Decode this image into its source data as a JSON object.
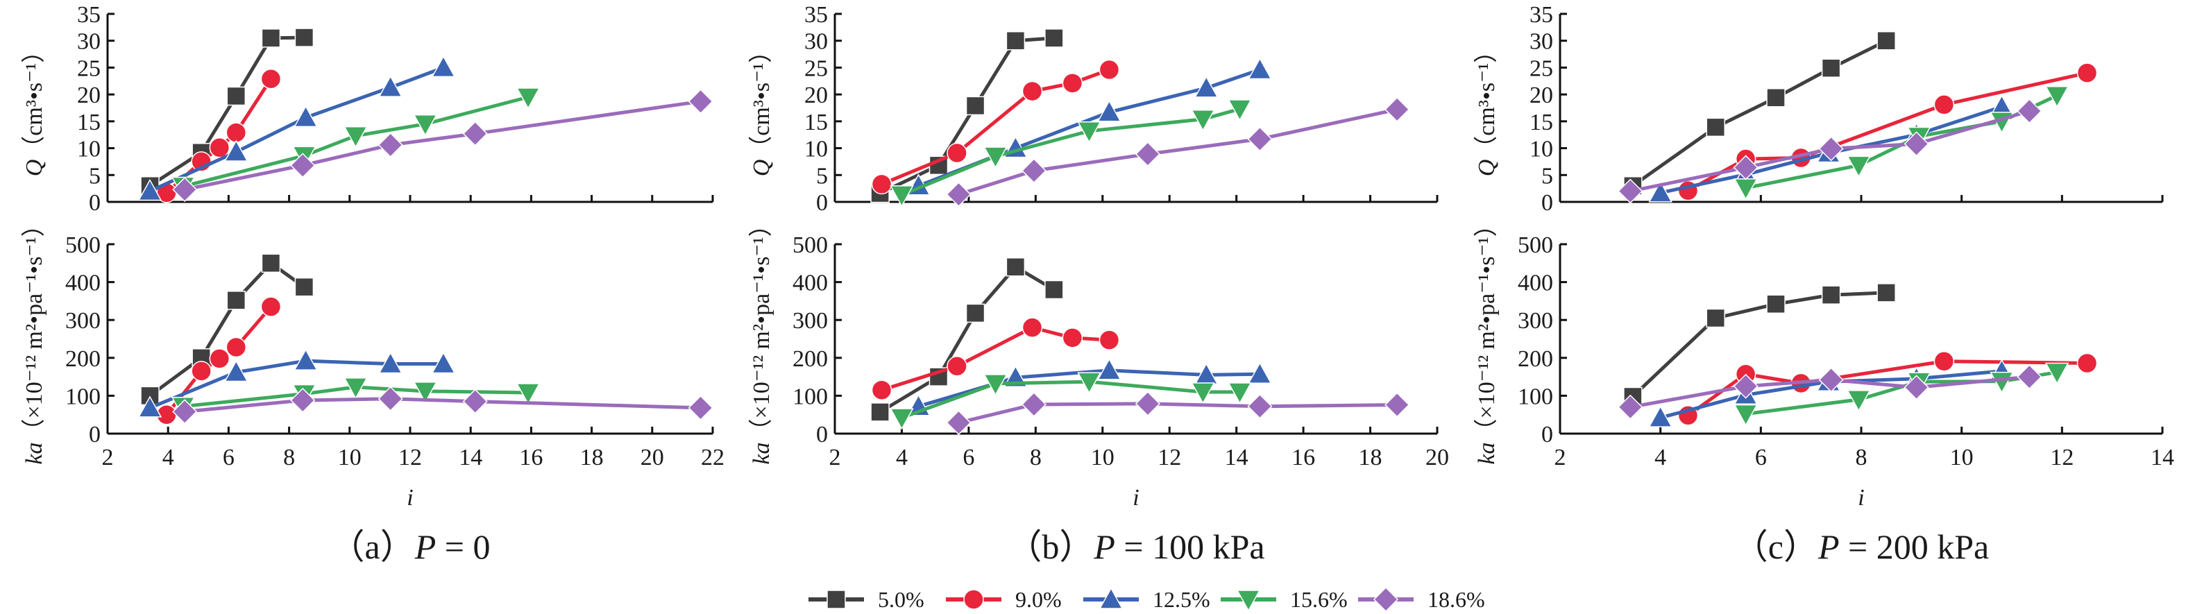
{
  "chart_data": {
    "type": "line",
    "legend": {
      "placement": "bottom-center",
      "entries": [
        "5.0%",
        "9.0%",
        "12.5%",
        "15.6%",
        "18.6%"
      ]
    },
    "series_styles": [
      {
        "name": "5.0%",
        "color": "#404040",
        "marker": "square"
      },
      {
        "name": "9.0%",
        "color": "#e8253a",
        "marker": "circle"
      },
      {
        "name": "12.5%",
        "color": "#3b64b3",
        "marker": "triangle-up"
      },
      {
        "name": "15.6%",
        "color": "#3daa5c",
        "marker": "triangle-down"
      },
      {
        "name": "18.6%",
        "color": "#9b6bbb",
        "marker": "diamond"
      }
    ],
    "panels": [
      {
        "caption_prefix": "（a）",
        "caption_var": "P",
        "caption_value": " = 0",
        "xlabel": "i",
        "xlim": [
          2,
          22
        ],
        "xticks": [
          2,
          4,
          6,
          8,
          10,
          12,
          14,
          16,
          18,
          20,
          22
        ],
        "top": {
          "ylabel_var": "Q",
          "ylabel_unit": "（cm³•s⁻¹）",
          "ylim": [
            0,
            35
          ],
          "yticks": [
            0,
            5,
            10,
            15,
            20,
            25,
            30,
            35
          ],
          "series": [
            {
              "name": "5.0%",
              "x": [
                3.4,
                5.1,
                6.25,
                7.4,
                8.5
              ],
              "y": [
                3.0,
                9.2,
                19.7,
                30.5,
                30.6
              ]
            },
            {
              "name": "9.0%",
              "x": [
                3.95,
                5.1,
                5.7,
                6.25,
                7.4
              ],
              "y": [
                1.7,
                7.5,
                10.1,
                12.9,
                22.9
              ]
            },
            {
              "name": "12.5%",
              "x": [
                3.4,
                6.25,
                8.55,
                11.35,
                13.1
              ],
              "y": [
                2.0,
                9.3,
                15.7,
                21.3,
                25.0
              ]
            },
            {
              "name": "15.6%",
              "x": [
                4.5,
                8.5,
                10.2,
                12.5,
                15.9
              ],
              "y": [
                2.9,
                8.6,
                12.3,
                14.5,
                19.5
              ]
            },
            {
              "name": "18.6%",
              "x": [
                4.55,
                8.45,
                11.35,
                14.15,
                21.6
              ],
              "y": [
                2.3,
                6.8,
                10.6,
                12.7,
                18.7
              ]
            }
          ]
        },
        "bottom": {
          "ylabel_var": "ka",
          "ylabel_unit": "（×10⁻¹² m²•pa⁻¹•s⁻¹）",
          "ylim": [
            0,
            500
          ],
          "yticks": [
            0,
            100,
            200,
            300,
            400,
            500
          ],
          "series": [
            {
              "name": "5.0%",
              "x": [
                3.4,
                5.1,
                6.25,
                7.4,
                8.5
              ],
              "y": [
                100,
                200,
                352,
                450,
                387
              ]
            },
            {
              "name": "9.0%",
              "x": [
                3.95,
                5.1,
                5.7,
                6.25,
                7.4
              ],
              "y": [
                50,
                165,
                198,
                228,
                335
              ]
            },
            {
              "name": "12.5%",
              "x": [
                3.4,
                6.25,
                8.55,
                11.35,
                13.1
              ],
              "y": [
                68,
                162,
                192,
                184,
                184
              ]
            },
            {
              "name": "15.6%",
              "x": [
                4.5,
                8.5,
                10.2,
                12.5,
                15.9
              ],
              "y": [
                72,
                105,
                123,
                112,
                108
              ]
            },
            {
              "name": "18.6%",
              "x": [
                4.55,
                8.45,
                11.35,
                14.15,
                21.6
              ],
              "y": [
                58,
                88,
                92,
                85,
                68
              ]
            }
          ]
        }
      },
      {
        "caption_prefix": "（b）",
        "caption_var": "P",
        "caption_value": " = 100 kPa",
        "xlabel": "i",
        "xlim": [
          2,
          20
        ],
        "xticks": [
          2,
          4,
          6,
          8,
          10,
          12,
          14,
          16,
          18,
          20
        ],
        "top": {
          "ylabel_var": "Q",
          "ylabel_unit": "（cm³•s⁻¹）",
          "ylim": [
            0,
            35
          ],
          "yticks": [
            0,
            5,
            10,
            15,
            20,
            25,
            30,
            35
          ],
          "series": [
            {
              "name": "5.0%",
              "x": [
                3.35,
                5.1,
                6.2,
                7.4,
                8.55
              ],
              "y": [
                1.6,
                6.8,
                17.9,
                30.0,
                30.5
              ]
            },
            {
              "name": "9.0%",
              "x": [
                3.4,
                5.65,
                7.9,
                9.1,
                10.2
              ],
              "y": [
                3.3,
                9.1,
                20.6,
                22.1,
                24.6
              ]
            },
            {
              "name": "12.5%",
              "x": [
                4.5,
                7.4,
                10.2,
                13.1,
                14.7
              ],
              "y": [
                3.0,
                10.0,
                16.7,
                21.2,
                24.6
              ]
            },
            {
              "name": "15.6%",
              "x": [
                4.0,
                6.8,
                9.6,
                13.0,
                14.1
              ],
              "y": [
                1.3,
                8.5,
                13.2,
                15.4,
                17.3
              ]
            },
            {
              "name": "18.6%",
              "x": [
                5.7,
                7.95,
                11.35,
                14.7,
                18.8
              ],
              "y": [
                1.4,
                5.8,
                8.9,
                11.7,
                17.2
              ]
            }
          ]
        },
        "bottom": {
          "ylabel_var": "ka",
          "ylabel_unit": "（×10⁻¹² m²•pa⁻¹•s⁻¹）",
          "ylim": [
            0,
            500
          ],
          "yticks": [
            0,
            100,
            200,
            300,
            400,
            500
          ],
          "series": [
            {
              "name": "5.0%",
              "x": [
                3.35,
                5.1,
                6.2,
                7.4,
                8.55
              ],
              "y": [
                57,
                150,
                318,
                440,
                380
              ]
            },
            {
              "name": "9.0%",
              "x": [
                3.4,
                5.65,
                7.9,
                9.1,
                10.2
              ],
              "y": [
                115,
                178,
                280,
                253,
                247
              ]
            },
            {
              "name": "12.5%",
              "x": [
                4.5,
                7.4,
                10.2,
                13.1,
                14.7
              ],
              "y": [
                72,
                148,
                167,
                155,
                157
              ]
            },
            {
              "name": "15.6%",
              "x": [
                4.0,
                6.8,
                9.6,
                13.0,
                14.1
              ],
              "y": [
                42,
                132,
                137,
                110,
                110
              ]
            },
            {
              "name": "18.6%",
              "x": [
                5.7,
                7.95,
                11.35,
                14.7,
                18.8
              ],
              "y": [
                29,
                77,
                79,
                72,
                76
              ]
            }
          ]
        }
      },
      {
        "caption_prefix": "（c）",
        "caption_var": "P",
        "caption_value": " = 200 kPa",
        "xlabel": "i",
        "xlim": [
          2,
          14
        ],
        "xticks": [
          2,
          4,
          6,
          8,
          10,
          12,
          14
        ],
        "top": {
          "ylabel_var": "Q",
          "ylabel_unit": "（cm³•s⁻¹）",
          "ylim": [
            0,
            35
          ],
          "yticks": [
            0,
            5,
            10,
            15,
            20,
            25,
            30,
            35
          ],
          "series": [
            {
              "name": "5.0%",
              "x": [
                3.45,
                5.1,
                6.3,
                7.4,
                8.5
              ],
              "y": [
                3.0,
                13.9,
                19.4,
                24.9,
                30.0
              ]
            },
            {
              "name": "9.0%",
              "x": [
                4.55,
                5.7,
                6.8,
                9.65,
                12.5
              ],
              "y": [
                2.1,
                8.0,
                8.2,
                18.1,
                24.0
              ]
            },
            {
              "name": "12.5%",
              "x": [
                4.0,
                5.7,
                7.35,
                9.1,
                10.8
              ],
              "y": [
                1.7,
                5.1,
                9.1,
                12.5,
                17.7
              ]
            },
            {
              "name": "15.6%",
              "x": [
                5.7,
                7.95,
                9.15,
                10.8,
                11.9
              ],
              "y": [
                2.6,
                6.8,
                12.2,
                15.0,
                19.8
              ]
            },
            {
              "name": "18.6%",
              "x": [
                3.4,
                5.7,
                7.4,
                9.1,
                11.35
              ],
              "y": [
                2.0,
                6.4,
                9.9,
                10.8,
                16.9
              ]
            }
          ]
        },
        "bottom": {
          "ylabel_var": "ka",
          "ylabel_unit": "（×10⁻¹² m²•pa⁻¹•s⁻¹）",
          "ylim": [
            0,
            500
          ],
          "yticks": [
            0,
            100,
            200,
            300,
            400,
            500
          ],
          "series": [
            {
              "name": "5.0%",
              "x": [
                3.45,
                5.1,
                6.3,
                7.4,
                8.5
              ],
              "y": [
                98,
                305,
                342,
                366,
                372
              ]
            },
            {
              "name": "9.0%",
              "x": [
                4.55,
                5.7,
                6.8,
                9.65,
                12.5
              ],
              "y": [
                48,
                157,
                133,
                191,
                186
              ]
            },
            {
              "name": "12.5%",
              "x": [
                4.0,
                5.7,
                7.35,
                9.1,
                10.8
              ],
              "y": [
                42,
                102,
                137,
                145,
                165
              ]
            },
            {
              "name": "15.6%",
              "x": [
                5.7,
                7.95,
                9.15,
                10.8,
                11.9
              ],
              "y": [
                52,
                90,
                137,
                138,
                162
              ]
            },
            {
              "name": "18.6%",
              "x": [
                3.4,
                5.7,
                7.4,
                9.1,
                11.35
              ],
              "y": [
                70,
                125,
                142,
                122,
                150
              ]
            }
          ]
        }
      }
    ]
  }
}
